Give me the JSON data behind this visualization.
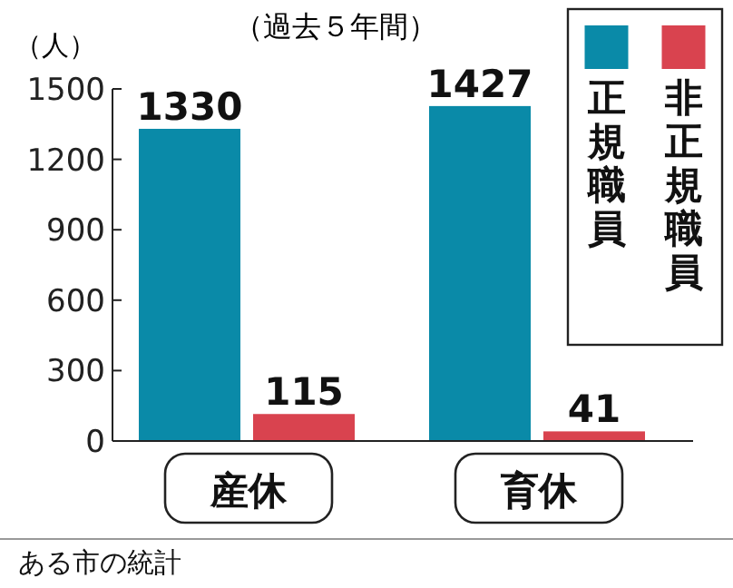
{
  "chart_data": {
    "type": "bar",
    "subtitle": "（過去５年間）",
    "ylabel": "（人）",
    "categories": [
      "産休",
      "育休"
    ],
    "series": [
      {
        "name": "正規職員",
        "color": "#0a8aa8",
        "values": [
          1330,
          1427
        ]
      },
      {
        "name": "非正規職員",
        "color": "#d9434f",
        "values": [
          115,
          41
        ]
      }
    ],
    "ylim": [
      0,
      1500
    ],
    "yticks": [
      0,
      300,
      600,
      900,
      1200,
      1500
    ],
    "data_labels": true,
    "legend": "top right",
    "grid": false,
    "annotations": [
      "ある市の統計"
    ]
  }
}
